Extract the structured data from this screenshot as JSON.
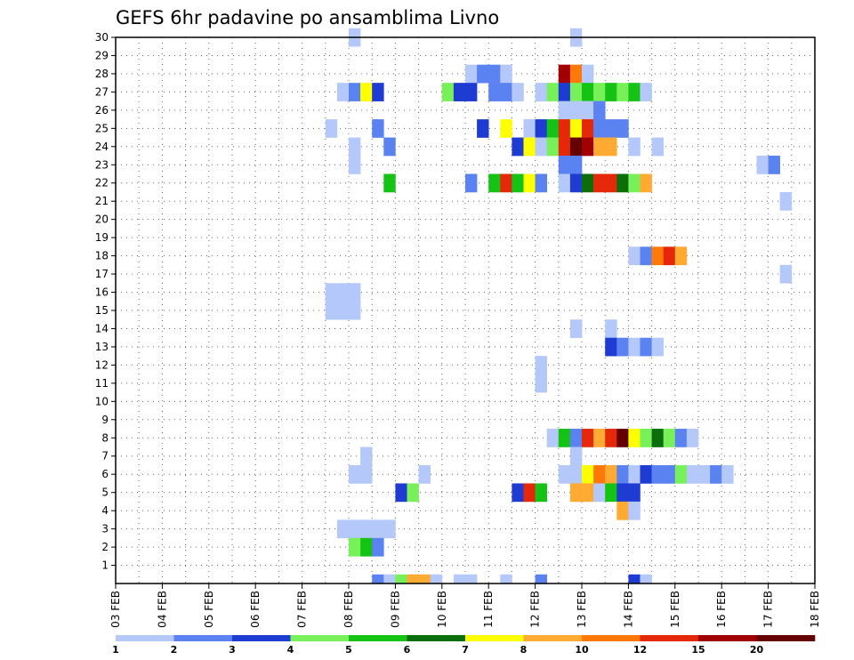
{
  "chart_data": {
    "type": "heatmap",
    "title": "GEFS 6hr padavine po ansamblima Livno",
    "x_ticks": [
      "03 FEB",
      "04 FEB",
      "05 FEB",
      "06 FEB",
      "07 FEB",
      "08 FEB",
      "09 FEB",
      "10 FEB",
      "11 FEB",
      "12 FEB",
      "13 FEB",
      "14 FEB",
      "15 FEB",
      "16 FEB",
      "17 FEB",
      "18 FEB"
    ],
    "x_range_days": [
      0,
      15
    ],
    "steps_per_day": 4,
    "y_ticks": [
      1,
      2,
      3,
      4,
      5,
      6,
      7,
      8,
      9,
      10,
      11,
      12,
      13,
      14,
      15,
      16,
      17,
      18,
      19,
      20,
      21,
      22,
      23,
      24,
      25,
      26,
      27,
      28,
      29,
      30
    ],
    "y_range": [
      0,
      30
    ],
    "grid": true,
    "colorbar": {
      "placement": "bottom",
      "labels": [
        "1",
        "2",
        "3",
        "4",
        "5",
        "6",
        "7",
        "8",
        "10",
        "12",
        "15",
        "20"
      ],
      "colors": [
        "#b4c8fa",
        "#5a82f0",
        "#1e3cd2",
        "#78f05a",
        "#14c314",
        "#0a6e0a",
        "#ffff00",
        "#ffaa32",
        "#ff780a",
        "#e6280a",
        "#a00000",
        "#640000"
      ]
    },
    "series": [
      {
        "member": 30,
        "cells": [
          [
            20,
            0
          ],
          [
            39,
            0
          ]
        ]
      },
      {
        "member": 28,
        "cells": [
          [
            30,
            0
          ],
          [
            31,
            1
          ],
          [
            32,
            1
          ],
          [
            33,
            0
          ],
          [
            38,
            10
          ],
          [
            39,
            8
          ],
          [
            40,
            0
          ]
        ]
      },
      {
        "member": 27,
        "cells": [
          [
            19,
            0
          ],
          [
            20,
            1
          ],
          [
            21,
            6
          ],
          [
            22,
            2
          ],
          [
            28,
            3
          ],
          [
            29,
            2
          ],
          [
            30,
            2
          ],
          [
            32,
            1
          ],
          [
            33,
            1
          ],
          [
            34,
            0
          ],
          [
            36,
            0
          ],
          [
            37,
            3
          ],
          [
            38,
            2
          ],
          [
            39,
            3
          ],
          [
            40,
            4
          ],
          [
            41,
            3
          ],
          [
            42,
            4
          ],
          [
            43,
            3
          ],
          [
            44,
            4
          ],
          [
            45,
            0
          ]
        ]
      },
      {
        "member": 26,
        "cells": [
          [
            38,
            0
          ],
          [
            39,
            0
          ],
          [
            40,
            0
          ],
          [
            41,
            1
          ]
        ]
      },
      {
        "member": 25,
        "cells": [
          [
            18,
            0
          ],
          [
            22,
            1
          ],
          [
            31,
            2
          ],
          [
            33,
            6
          ],
          [
            35,
            0
          ],
          [
            36,
            2
          ],
          [
            37,
            4
          ],
          [
            38,
            9
          ],
          [
            39,
            6
          ],
          [
            40,
            9
          ],
          [
            41,
            1
          ],
          [
            42,
            1
          ],
          [
            43,
            1
          ]
        ]
      },
      {
        "member": 24,
        "cells": [
          [
            20,
            0
          ],
          [
            23,
            1
          ],
          [
            34,
            2
          ],
          [
            35,
            6
          ],
          [
            36,
            0
          ],
          [
            37,
            3
          ],
          [
            38,
            9
          ],
          [
            39,
            11
          ],
          [
            40,
            10
          ],
          [
            41,
            7
          ],
          [
            42,
            7
          ],
          [
            44,
            0
          ],
          [
            46,
            0
          ]
        ]
      },
      {
        "member": 23,
        "cells": [
          [
            20,
            0
          ],
          [
            38,
            1
          ],
          [
            39,
            1
          ],
          [
            55,
            0
          ],
          [
            56,
            1
          ]
        ]
      },
      {
        "member": 22,
        "cells": [
          [
            23,
            4
          ],
          [
            30,
            1
          ],
          [
            32,
            4
          ],
          [
            33,
            9
          ],
          [
            34,
            4
          ],
          [
            35,
            6
          ],
          [
            36,
            1
          ],
          [
            38,
            0
          ],
          [
            39,
            2
          ],
          [
            40,
            5
          ],
          [
            41,
            9
          ],
          [
            42,
            9
          ],
          [
            43,
            5
          ],
          [
            44,
            3
          ],
          [
            45,
            7
          ]
        ]
      },
      {
        "member": 21,
        "cells": [
          [
            57,
            0
          ]
        ]
      },
      {
        "member": 18,
        "cells": [
          [
            44,
            0
          ],
          [
            45,
            1
          ],
          [
            46,
            8
          ],
          [
            47,
            9
          ],
          [
            48,
            7
          ]
        ]
      },
      {
        "member": 17,
        "cells": [
          [
            57,
            0
          ]
        ]
      },
      {
        "member": 16,
        "cells": [
          [
            18,
            0
          ],
          [
            19,
            0
          ],
          [
            20,
            0
          ]
        ]
      },
      {
        "member": 15,
        "cells": [
          [
            18,
            0
          ],
          [
            19,
            0
          ],
          [
            20,
            0
          ]
        ]
      },
      {
        "member": 14,
        "cells": [
          [
            39,
            0
          ],
          [
            42,
            0
          ]
        ]
      },
      {
        "member": 13,
        "cells": [
          [
            42,
            2
          ],
          [
            43,
            1
          ],
          [
            44,
            0
          ],
          [
            45,
            1
          ],
          [
            46,
            0
          ]
        ]
      },
      {
        "member": 12,
        "cells": [
          [
            36,
            0
          ]
        ]
      },
      {
        "member": 11,
        "cells": [
          [
            36,
            0
          ]
        ]
      },
      {
        "member": 8,
        "cells": [
          [
            37,
            0
          ],
          [
            38,
            4
          ],
          [
            39,
            1
          ],
          [
            40,
            9
          ],
          [
            41,
            7
          ],
          [
            42,
            9
          ],
          [
            43,
            11
          ],
          [
            44,
            6
          ],
          [
            45,
            3
          ],
          [
            46,
            5
          ],
          [
            47,
            3
          ],
          [
            48,
            1
          ],
          [
            49,
            0
          ]
        ]
      },
      {
        "member": 7,
        "cells": [
          [
            21,
            0
          ],
          [
            39,
            0
          ]
        ]
      },
      {
        "member": 6,
        "cells": [
          [
            20,
            0
          ],
          [
            21,
            0
          ],
          [
            26,
            0
          ],
          [
            38,
            0
          ],
          [
            39,
            0
          ],
          [
            40,
            6
          ],
          [
            41,
            8
          ],
          [
            42,
            7
          ],
          [
            43,
            1
          ],
          [
            44,
            0
          ],
          [
            45,
            2
          ],
          [
            46,
            1
          ],
          [
            47,
            1
          ],
          [
            48,
            3
          ],
          [
            49,
            0
          ],
          [
            50,
            0
          ],
          [
            51,
            1
          ],
          [
            52,
            0
          ]
        ]
      },
      {
        "member": 5,
        "cells": [
          [
            24,
            2
          ],
          [
            25,
            3
          ],
          [
            34,
            2
          ],
          [
            35,
            9
          ],
          [
            36,
            4
          ],
          [
            39,
            7
          ],
          [
            40,
            7
          ],
          [
            41,
            0
          ],
          [
            42,
            4
          ],
          [
            43,
            2
          ],
          [
            44,
            2
          ]
        ]
      },
      {
        "member": 4,
        "cells": [
          [
            43,
            7
          ],
          [
            44,
            0
          ]
        ]
      },
      {
        "member": 3,
        "cells": [
          [
            19,
            0
          ],
          [
            20,
            0
          ],
          [
            21,
            0
          ],
          [
            22,
            0
          ],
          [
            23,
            0
          ]
        ]
      },
      {
        "member": 2,
        "cells": [
          [
            20,
            3
          ],
          [
            21,
            4
          ],
          [
            22,
            1
          ]
        ]
      },
      {
        "member": 0,
        "cells": [
          [
            22,
            1
          ],
          [
            23,
            0
          ],
          [
            24,
            3
          ],
          [
            25,
            7
          ],
          [
            26,
            7
          ],
          [
            27,
            0
          ],
          [
            29,
            0
          ],
          [
            30,
            0
          ],
          [
            33,
            0
          ],
          [
            36,
            1
          ],
          [
            44,
            2
          ],
          [
            45,
            0
          ]
        ]
      }
    ]
  }
}
